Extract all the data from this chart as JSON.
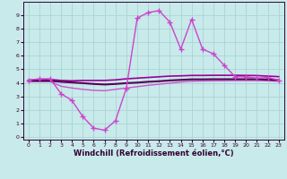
{
  "xlabel": "Windchill (Refroidissement éolien,°C)",
  "x_ticks": [
    0,
    1,
    2,
    3,
    4,
    5,
    6,
    7,
    8,
    9,
    10,
    11,
    12,
    13,
    14,
    15,
    16,
    17,
    18,
    19,
    20,
    21,
    22,
    23
  ],
  "ylim": [
    -0.2,
    10
  ],
  "xlim": [
    -0.5,
    23.5
  ],
  "y_ticks": [
    0,
    1,
    2,
    3,
    4,
    5,
    6,
    7,
    8,
    9
  ],
  "bg_color": "#c8eaea",
  "grid_color": "#aad4d4",
  "line_flat1_x": [
    0,
    1,
    2,
    3,
    4,
    5,
    6,
    7,
    8,
    9,
    10,
    11,
    12,
    13,
    14,
    15,
    16,
    17,
    18,
    19,
    20,
    21,
    22,
    23
  ],
  "line_flat1_y": [
    4.2,
    4.25,
    4.25,
    4.18,
    4.15,
    4.18,
    4.18,
    4.18,
    4.22,
    4.3,
    4.35,
    4.4,
    4.45,
    4.5,
    4.52,
    4.55,
    4.55,
    4.56,
    4.56,
    4.56,
    4.55,
    4.54,
    4.5,
    4.46
  ],
  "line_flat1_color": "#990099",
  "line_flat1_lw": 1.2,
  "line_flat2_x": [
    0,
    1,
    2,
    3,
    4,
    5,
    6,
    7,
    8,
    9,
    10,
    11,
    12,
    13,
    14,
    15,
    16,
    17,
    18,
    19,
    20,
    21,
    22,
    23
  ],
  "line_flat2_y": [
    4.15,
    4.15,
    4.15,
    4.08,
    4.03,
    3.98,
    3.92,
    3.88,
    3.92,
    3.98,
    4.02,
    4.08,
    4.12,
    4.18,
    4.22,
    4.26,
    4.26,
    4.27,
    4.27,
    4.27,
    4.27,
    4.27,
    4.24,
    4.2
  ],
  "line_flat2_color": "#550055",
  "line_flat2_lw": 1.5,
  "line_flat3_x": [
    0,
    1,
    2,
    3,
    4,
    5,
    6,
    7,
    8,
    9,
    10,
    11,
    12,
    13,
    14,
    15,
    16,
    17,
    18,
    19,
    20,
    21,
    22,
    23
  ],
  "line_flat3_y": [
    4.1,
    4.1,
    4.1,
    3.75,
    3.62,
    3.52,
    3.45,
    3.42,
    3.52,
    3.62,
    3.72,
    3.82,
    3.9,
    3.98,
    4.06,
    4.12,
    4.14,
    4.15,
    4.16,
    4.17,
    4.17,
    4.17,
    4.15,
    4.12
  ],
  "line_flat3_color": "#cc55cc",
  "line_flat3_lw": 1.0,
  "line_main_x": [
    0,
    1,
    2,
    3,
    4,
    5,
    6,
    7,
    8,
    9,
    10,
    11,
    12,
    13,
    14,
    15,
    16,
    17,
    18,
    19,
    20,
    21,
    22,
    23
  ],
  "line_main_y": [
    4.2,
    4.3,
    4.3,
    3.2,
    2.7,
    1.5,
    0.65,
    0.5,
    1.2,
    3.6,
    8.8,
    9.2,
    9.35,
    8.5,
    6.5,
    8.7,
    6.5,
    6.15,
    5.3,
    4.45,
    4.45,
    4.35,
    4.4,
    4.2
  ],
  "line_main_color": "#cc44cc",
  "line_main_lw": 1.0,
  "line_main_marker": "+",
  "line_main_markersize": 4,
  "line_main_markeredgewidth": 1.0,
  "label_color": "#330033",
  "tick_fontsize": 4.5,
  "xlabel_fontsize": 6.0,
  "xlabel_fontweight": "bold"
}
